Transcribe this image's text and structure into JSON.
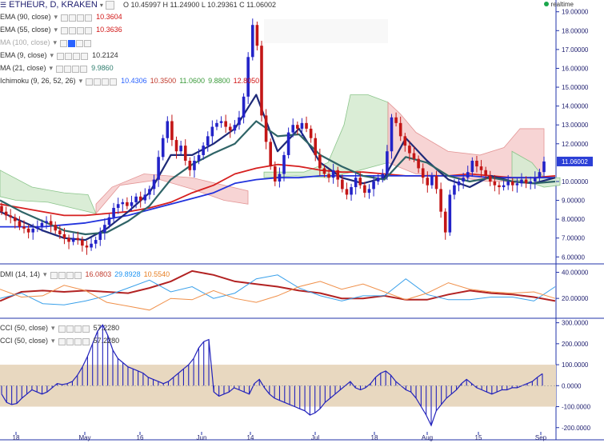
{
  "header": {
    "title": "ETHEUR, D, KRAKEN",
    "ohlc": "O 10.45997  H 11.24900  L 10.29361  C 11.06002",
    "realtime": "realtime"
  },
  "indicators_main": [
    {
      "label": "EMA (90, close)",
      "values": [
        "10.3604"
      ],
      "colors": [
        "#d11414"
      ]
    },
    {
      "label": "EMA (55, close)",
      "values": [
        "10.3636"
      ],
      "colors": [
        "#d11414"
      ]
    },
    {
      "label": "MA (100, close)",
      "values": [],
      "colors": [],
      "faded": true
    },
    {
      "label": "EMA (9, close)",
      "values": [
        "10.2124"
      ],
      "colors": [
        "#333333"
      ]
    },
    {
      "label": "MA (21, close)",
      "values": [
        "9.9860"
      ],
      "colors": [
        "#2e7d6e"
      ]
    },
    {
      "label": "Ichimoku (9, 26, 52, 26)",
      "values": [
        "10.4306",
        "10.3500",
        "11.0600",
        "9.8800",
        "12.8050"
      ],
      "colors": [
        "#2962ff",
        "#c0392b",
        "#3a9a3a",
        "#3a9a3a",
        "#d11414"
      ]
    }
  ],
  "indicators_dmi": [
    {
      "label": "DMI (14, 14)",
      "values": [
        "16.0803",
        "29.8928",
        "10.5540"
      ],
      "colors": [
        "#c0392b",
        "#2196f3",
        "#e67e22"
      ]
    }
  ],
  "indicators_cci": [
    {
      "label": "CCI (50, close)",
      "values": [
        "57.2280"
      ],
      "colors": [
        "#333333"
      ]
    },
    {
      "label": "CCI (50, close)",
      "values": [
        "57.2280"
      ],
      "colors": [
        "#333333"
      ]
    }
  ],
  "colors": {
    "up": "#2323c8",
    "down": "#c31616",
    "cloud_bull": "#d6ecd2",
    "cloud_bear": "#f7d0d0",
    "ema_red": "#d61f1f",
    "ma_blue": "#2233dd",
    "ema_teal": "#2f6467",
    "ema_navy": "#1e2a78",
    "dmi_red": "#b22222",
    "dmi_blue": "#39a0ea",
    "dmi_orange": "#f0904a",
    "cci_bar": "#2222bb",
    "cci_band": "#e8d8c0",
    "axis_text": "#1d1d6e",
    "sep": "#2233aa"
  },
  "chart_data": [
    {
      "type": "candlestick",
      "title": "ETHEUR, D, KRAKEN",
      "x_ticks": [
        "18",
        "May",
        "16",
        "Jun",
        "14",
        "Jul",
        "18",
        "Aug",
        "15",
        "Sep"
      ],
      "y_ticks": [
        "19.00000",
        "18.00000",
        "17.00000",
        "16.00000",
        "15.00000",
        "14.00000",
        "13.00000",
        "12.00000",
        "11.06002",
        "10.00000",
        "9.00000",
        "8.00000",
        "7.00000",
        "6.00000"
      ],
      "ylim": [
        5.8,
        19.2
      ],
      "last_price": "11.06002",
      "close_values": [
        8.4,
        8.2,
        8.1,
        7.9,
        7.6,
        7.5,
        7.3,
        7.5,
        7.6,
        7.8,
        7.9,
        7.7,
        7.4,
        7.2,
        7.0,
        6.8,
        7.0,
        6.9,
        6.6,
        6.5,
        6.7,
        6.9,
        7.3,
        7.7,
        8.1,
        8.6,
        8.8,
        8.9,
        8.7,
        8.9,
        9.2,
        9.0,
        9.3,
        9.6,
        10.1,
        11.3,
        12.3,
        13.2,
        12.2,
        11.6,
        11.9,
        11.1,
        10.6,
        11.1,
        11.4,
        11.9,
        12.4,
        12.9,
        13.1,
        13.2,
        12.9,
        12.7,
        13.0,
        13.4,
        14.5,
        16.6,
        18.3,
        17.2,
        13.5,
        12.1,
        10.8,
        10.0,
        10.4,
        11.4,
        12.6,
        13.0,
        12.8,
        13.1,
        12.8,
        12.3,
        11.4,
        10.7,
        10.4,
        10.2,
        10.6,
        10.1,
        9.6,
        9.3,
        9.7,
        10.2,
        9.8,
        9.4,
        9.6,
        10.0,
        10.2,
        10.4,
        11.6,
        13.4,
        13.1,
        12.4,
        11.9,
        11.5,
        11.2,
        10.7,
        10.2,
        9.8,
        10.3,
        9.6,
        8.4,
        7.3,
        9.3,
        9.8,
        10.0,
        10.2,
        10.5,
        11.1,
        10.8,
        10.6,
        10.3,
        10.0,
        9.8,
        9.7,
        9.8,
        10.0,
        9.8,
        9.9,
        10.1,
        9.9,
        10.0,
        10.2,
        10.5,
        11.06
      ],
      "series": [
        {
          "name": "EMA (90, close)",
          "values": [
            8.8,
            8.6,
            8.4,
            8.2,
            8.2,
            8.3,
            8.4,
            8.6,
            8.9,
            9.4,
            9.8,
            10.4,
            10.7,
            10.9,
            10.8,
            10.6,
            10.5,
            10.5,
            10.4,
            10.3,
            10.3,
            10.3,
            10.4,
            10.3,
            10.2,
            10.2,
            10.3
          ]
        },
        {
          "name": "MA (100, close)",
          "values": [
            7.6,
            7.6,
            7.6,
            7.7,
            7.8,
            8.0,
            8.2,
            8.5,
            8.8,
            9.1,
            9.4,
            9.9,
            10.1,
            10.2,
            10.2,
            10.3,
            10.3,
            10.3,
            10.3,
            10.3,
            10.3,
            10.3,
            10.3,
            10.2,
            10.2,
            10.2,
            10.2
          ]
        },
        {
          "name": "EMA (9, close)",
          "values": [
            8.4,
            7.9,
            7.4,
            7.0,
            6.9,
            7.5,
            8.4,
            9.4,
            11.4,
            11.4,
            12.0,
            12.8,
            14.6,
            11.6,
            12.8,
            11.0,
            10.2,
            9.9,
            10.2,
            12.3,
            11.1,
            10.1,
            9.7,
            10.3,
            10.0,
            9.9,
            10.2
          ]
        },
        {
          "name": "MA (21, close)",
          "values": [
            9.0,
            8.4,
            7.9,
            7.4,
            7.2,
            7.3,
            7.9,
            8.7,
            10.1,
            10.9,
            11.5,
            12.0,
            13.2,
            12.4,
            12.5,
            11.4,
            10.8,
            10.3,
            10.1,
            11.3,
            11.0,
            10.3,
            10.0,
            10.2,
            10.0,
            9.9,
            10.0
          ]
        }
      ]
    },
    {
      "type": "line",
      "title": "DMI (14, 14)",
      "y_ticks": [
        "40.00000",
        "20.00000"
      ],
      "ylim": [
        6,
        44
      ],
      "series": [
        {
          "name": "ADX",
          "values": [
            18,
            25,
            26,
            25,
            26,
            25,
            24,
            28,
            33,
            41,
            38,
            33,
            31,
            29,
            26,
            24,
            20,
            20,
            22,
            19,
            19,
            23,
            26,
            24,
            23,
            21,
            18
          ]
        },
        {
          "name": "+DI",
          "values": [
            20,
            24,
            16,
            15,
            18,
            22,
            28,
            34,
            25,
            29,
            20,
            24,
            35,
            38,
            28,
            22,
            18,
            22,
            22,
            35,
            23,
            19,
            19,
            21,
            21,
            18,
            29
          ]
        },
        {
          "name": "-DI",
          "values": [
            27,
            21,
            22,
            30,
            26,
            17,
            14,
            11,
            20,
            19,
            26,
            20,
            17,
            22,
            29,
            33,
            27,
            31,
            25,
            19,
            24,
            32,
            27,
            25,
            24,
            25,
            20
          ]
        }
      ]
    },
    {
      "type": "bar",
      "title": "CCI (50, close)",
      "y_ticks": [
        "300.0000",
        "200.0000",
        "100.0000",
        "0.0000",
        "-100.0000",
        "-200.0000"
      ],
      "ylim": [
        -220,
        310
      ],
      "band": [
        -100,
        100
      ],
      "values": [
        -40,
        -80,
        -90,
        -85,
        -60,
        -40,
        -20,
        -30,
        -40,
        -30,
        -10,
        10,
        5,
        10,
        20,
        50,
        90,
        140,
        200,
        260,
        290,
        240,
        170,
        130,
        110,
        90,
        80,
        70,
        60,
        40,
        30,
        20,
        10,
        20,
        40,
        60,
        80,
        100,
        130,
        180,
        210,
        220,
        -30,
        -50,
        -40,
        -30,
        -10,
        -20,
        -30,
        -40,
        10,
        30,
        -10,
        -40,
        -60,
        -70,
        -80,
        -90,
        -100,
        -110,
        -120,
        -140,
        -130,
        -110,
        -80,
        -60,
        -40,
        -20,
        0,
        20,
        -10,
        -20,
        -10,
        10,
        40,
        60,
        70,
        50,
        20,
        0,
        -20,
        -30,
        -60,
        -100,
        -140,
        -190,
        -120,
        -90,
        -60,
        -40,
        -20,
        10,
        30,
        10,
        -10,
        -20,
        -30,
        -40,
        -30,
        -20,
        -20,
        -10,
        -10,
        0,
        10,
        20,
        40,
        57
      ]
    }
  ]
}
